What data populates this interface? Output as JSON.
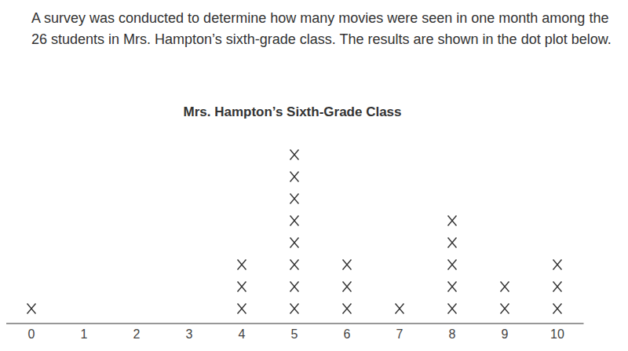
{
  "chart_data": {
    "type": "dot",
    "title": "Mrs. Hampton’s Sixth-Grade Class",
    "annotations": [
      "A survey was conducted to determine how many movies were seen in one month among the 26 students in Mrs. Hampton’s sixth-grade class. The results are shown in the dot plot below."
    ],
    "x": [
      0,
      1,
      2,
      3,
      4,
      5,
      6,
      7,
      8,
      9,
      10
    ],
    "values": [
      1,
      0,
      0,
      0,
      3,
      8,
      3,
      1,
      5,
      2,
      3
    ],
    "xlim": [
      -0.5,
      10.5
    ],
    "xticks": [
      0,
      1,
      2,
      3,
      4,
      5,
      6,
      7,
      8,
      9,
      10
    ],
    "marker": "x",
    "color": "#333333",
    "tick_labels": "x",
    "grid": false
  }
}
